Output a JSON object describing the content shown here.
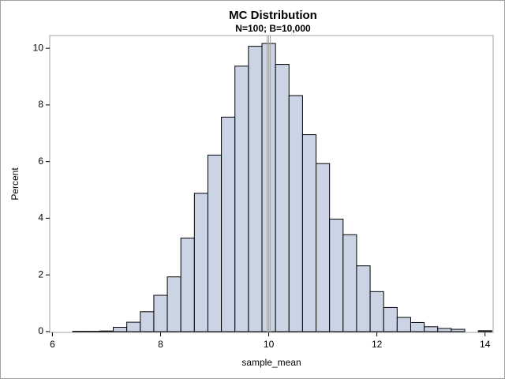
{
  "chart_data": {
    "type": "histogram",
    "title": "MC Distribution",
    "subtitle": "N=100;  B=10,000",
    "x_label": "sample_mean",
    "y_label": "Percent",
    "bins": [
      6.375,
      6.625,
      6.875,
      7.125,
      7.375,
      7.625,
      7.875,
      8.125,
      8.375,
      8.625,
      8.875,
      9.125,
      9.375,
      9.625,
      9.875,
      10.125,
      10.375,
      10.625,
      10.875,
      11.125,
      11.375,
      11.625,
      11.875,
      12.125,
      12.375,
      12.625,
      12.875,
      13.125,
      13.375,
      13.625,
      13.875,
      14.125
    ],
    "values": [
      0.01,
      0.01,
      0.02,
      0.15,
      0.33,
      0.7,
      1.28,
      1.93,
      3.3,
      4.88,
      6.23,
      7.57,
      9.37,
      10.07,
      10.17,
      9.43,
      8.33,
      6.95,
      5.93,
      3.97,
      3.42,
      2.32,
      1.41,
      0.85,
      0.5,
      0.32,
      0.17,
      0.11,
      0.08,
      0,
      0.03
    ],
    "color": "#cad4e4",
    "reference_lines": [
      9.97,
      10.0,
      10.03
    ],
    "xlim": [
      5.95,
      14.15
    ],
    "xticks": [
      6,
      8,
      10,
      12,
      14
    ],
    "ylim": [
      -0.03,
      10.45
    ],
    "yticks": [
      0,
      2,
      4,
      6,
      8,
      10
    ]
  }
}
